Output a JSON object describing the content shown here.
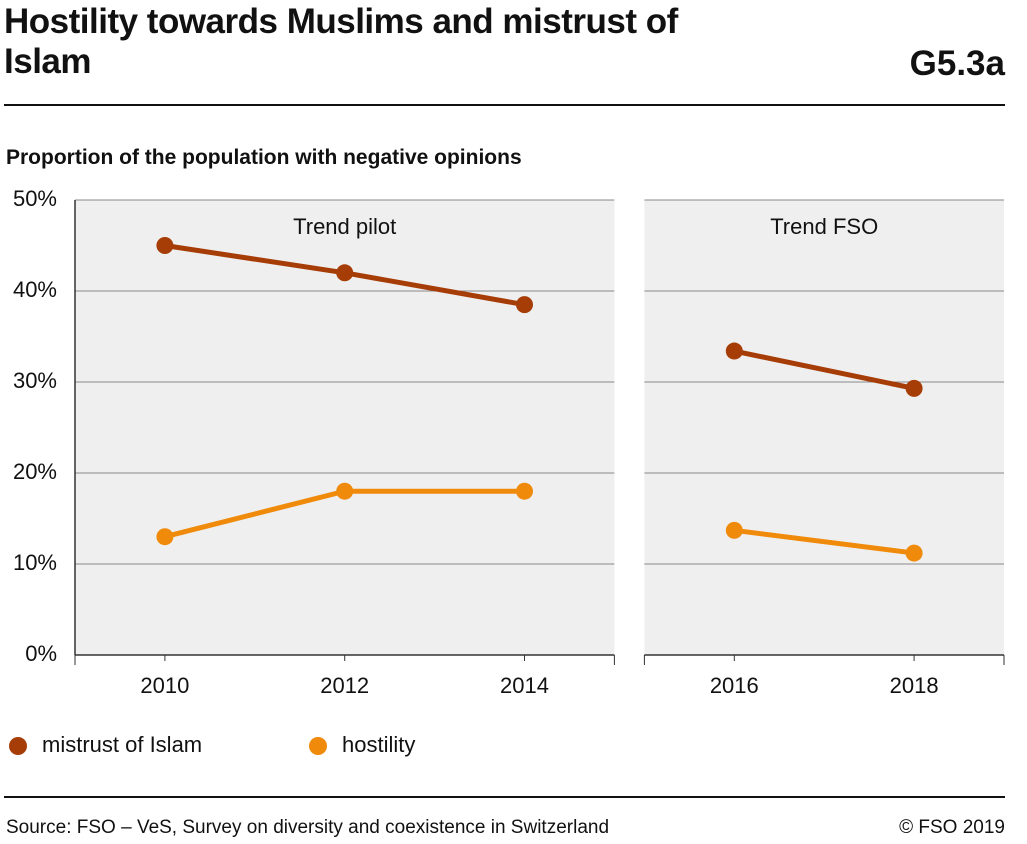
{
  "title": "Hostility towards Muslims and mistrust of Islam",
  "code": "G5.3a",
  "subtitle": "Proportion of the population with negative opinions",
  "source": "Source: FSO – VeS, Survey on diversity and coexistence in Switzerland",
  "copyright": "© FSO 2019",
  "chart_data": [
    {
      "type": "line",
      "annotation": "Trend pilot",
      "x": [
        2010,
        2012,
        2014
      ],
      "xlim": [
        2009,
        2015
      ],
      "xticks": [
        2010,
        2012,
        2014
      ],
      "ylim": [
        0,
        50
      ],
      "yticks": [
        {
          "value": 0,
          "label": "0%"
        },
        {
          "value": 10,
          "label": "10%"
        },
        {
          "value": 20,
          "label": "20%"
        },
        {
          "value": 30,
          "label": "30%"
        },
        {
          "value": 40,
          "label": "40%"
        },
        {
          "value": 50,
          "label": "50%"
        }
      ],
      "grid": true,
      "series": [
        {
          "name": "mistrust of Islam",
          "color": "#a63c06",
          "values": [
            45,
            42,
            38.5
          ]
        },
        {
          "name": "hostility",
          "color": "#f08a0b",
          "values": [
            13,
            18,
            18
          ]
        }
      ]
    },
    {
      "type": "line",
      "annotation": "Trend FSO",
      "x": [
        2016,
        2018
      ],
      "xlim": [
        2015,
        2019
      ],
      "xticks": [
        2016,
        2018
      ],
      "ylim": [
        0,
        50
      ],
      "yticks": [
        0,
        10,
        20,
        30,
        40,
        50
      ],
      "grid": true,
      "series": [
        {
          "color": "#a63c06",
          "values": [
            33.4,
            29.3
          ]
        },
        {
          "color": "#f08a0b",
          "values": [
            13.7,
            11.2
          ]
        }
      ]
    }
  ]
}
